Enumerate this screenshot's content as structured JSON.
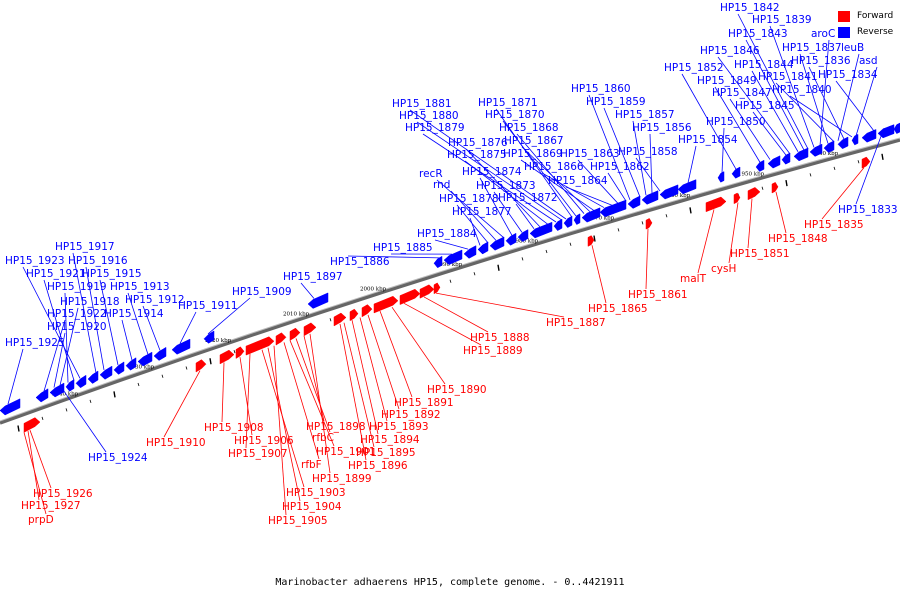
{
  "caption": "Marinobacter adhaerens HP15, complete genome. - 0..4421911",
  "legend": [
    {
      "label": "Forward",
      "color": "#ff0000"
    },
    {
      "label": "Reverse",
      "color": "#0000ff"
    }
  ],
  "ticks": [
    "2040 kbp",
    "2030 kbp",
    "2020 kbp",
    "2010 kbp",
    "2000 kbp",
    "1990 kbp",
    "1980 kbp",
    "1970 kbp",
    "1960 kbp",
    "1950 kbp",
    "1940 kbp"
  ],
  "reverse_labels": [
    "HP15_1925",
    "HP15_1922",
    "HP15_1920",
    "HP15_1918",
    "HP15_1919",
    "HP15_1921",
    "HP15_1923",
    "HP15_1917",
    "HP15_1916",
    "HP15_1915",
    "HP15_1914",
    "HP15_1913",
    "HP15_1912",
    "HP15_1911",
    "HP15_1909",
    "HP15_1897",
    "HP15_1886",
    "HP15_1885",
    "HP15_1884",
    "HP15_1877",
    "HP15_1878",
    "rnd",
    "recR",
    "HP15_1874",
    "HP15_1873",
    "HP15_1872",
    "HP15_1876",
    "HP15_1875",
    "HP15_1879",
    "HP15_1880",
    "HP15_1881",
    "HP15_1871",
    "HP15_1870",
    "HP15_1868",
    "HP15_1867",
    "HP15_1869",
    "HP15_1866",
    "HP15_1864",
    "HP15_1863",
    "HP15_1862",
    "HP15_1860",
    "HP15_1859",
    "HP15_1857",
    "HP15_1856",
    "HP15_1858",
    "HP15_1854",
    "HP15_1850",
    "HP15_1852",
    "HP15_1849",
    "HP15_1847",
    "HP15_1845",
    "HP15_1846",
    "HP15_1844",
    "HP15_1843",
    "HP15_1842",
    "HP15_1839",
    "aroC",
    "HP15_1837",
    "leuB",
    "HP15_1841",
    "HP15_1836",
    "asd",
    "HP15_1840",
    "HP15_1834",
    "HP15_1833",
    "HP15_1924"
  ],
  "forward_labels": [
    "HP15_1926",
    "HP15_1927",
    "prpD",
    "HP15_1910",
    "HP15_1908",
    "HP15_1906",
    "HP15_1907",
    "HP15_1903",
    "HP15_1904",
    "HP15_1905",
    "rfbF",
    "HP15_1901",
    "rfbC",
    "HP15_1898",
    "HP15_1899",
    "HP15_1896",
    "HP15_1895",
    "HP15_1894",
    "HP15_1893",
    "HP15_1892",
    "HP15_1891",
    "HP15_1890",
    "HP15_1889",
    "HP15_1888",
    "HP15_1887",
    "HP15_1865",
    "HP15_1861",
    "malT",
    "cysH",
    "HP15_1851",
    "HP15_1848",
    "HP15_1835"
  ]
}
